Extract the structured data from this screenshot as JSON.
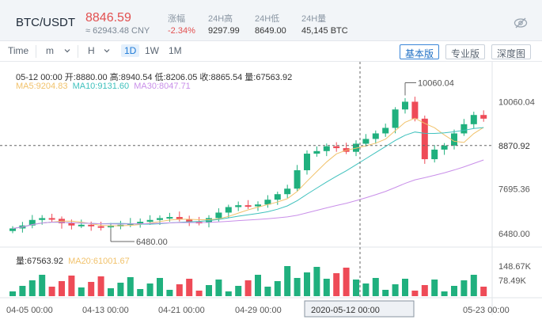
{
  "header": {
    "pair": "BTC/USDT",
    "price": "8846.59",
    "cny": "≈ 62943.48 CNY",
    "stats": [
      {
        "label": "涨幅",
        "value": "-2.34%",
        "neg": true
      },
      {
        "label": "24H高",
        "value": "9297.99"
      },
      {
        "label": "24H低",
        "value": "8649.00"
      },
      {
        "label": "24H量",
        "value": "45,145 BTC"
      }
    ]
  },
  "toolbar": {
    "time": "Time",
    "minute": "m",
    "hour": "H",
    "day": "1D",
    "week": "1W",
    "month": "1M",
    "views": [
      "基本版",
      "专业版",
      "深度图"
    ]
  },
  "info": {
    "line1": "05-12 00:00   开:8880.00  高:8940.54  低:8206.05  收:8865.54  量:67563.92",
    "ma5": "MA5:9204.83",
    "ma10": "MA10:9131.60",
    "ma30": "MA30:8047.71",
    "vol": "量:67563.92",
    "ma20": "MA20:61001.67"
  },
  "chart_data": {
    "type": "candlestick",
    "y_ticks": [
      "10060.04",
      "8870.92",
      "7695.36",
      "6480.00"
    ],
    "vol_ticks": [
      "148.67K",
      "78.49K"
    ],
    "x_ticks": [
      "04-05 00:00",
      "04-13 00:00",
      "04-21 00:00",
      "04-29 00:00",
      "05-23 00:00"
    ],
    "crosshair_date": "2020-05-12 00:00",
    "crosshair_price": "8870.92",
    "max_label": "10060.04",
    "min_label": "6480.00",
    "ylim": [
      6200,
      10500
    ],
    "colors": {
      "up": "#20b07e",
      "down": "#ee4b57",
      "ma5": "#f1c26b",
      "ma10": "#3fc1bd",
      "ma30": "#c98fe9"
    }
  }
}
